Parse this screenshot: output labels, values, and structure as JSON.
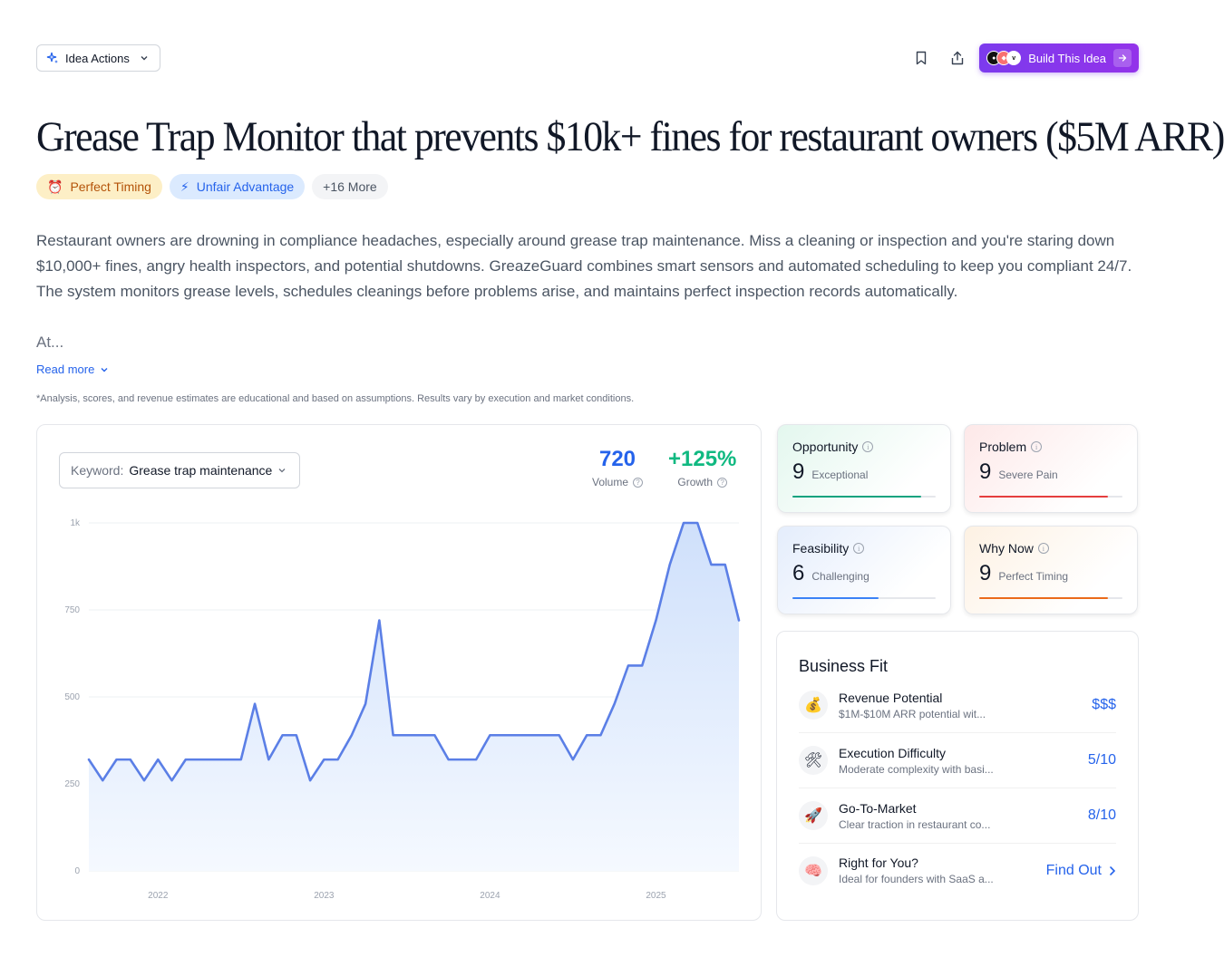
{
  "toolbar": {
    "idea_actions_label": "Idea Actions",
    "build_label": "Build This Idea"
  },
  "idea": {
    "title": "Grease Trap Monitor that prevents $10k+ fines for restaurant owners ($5M ARR)",
    "tags": [
      {
        "icon": "alarm-clock-icon",
        "label": "Perfect Timing"
      },
      {
        "icon": "lightning-icon",
        "label": "Unfair Advantage"
      },
      {
        "label": "+16 More"
      }
    ],
    "description": "Restaurant owners are drowning in compliance headaches, especially around grease trap maintenance. Miss a cleaning or inspection and you're staring down $10,000+ fines, angry health inspectors, and potential shutdowns. GreazeGuard combines smart sensors and automated scheduling to keep you compliant 24/7. The system monitors grease levels, schedules cleanings before problems arise, and maintains perfect inspection records automatically.",
    "description_more": "At...",
    "read_more_label": "Read more",
    "disclaimer": "*Analysis, scores, and revenue estimates are educational and based on assumptions. Results vary by execution and market conditions."
  },
  "trend": {
    "keyword_label": "Keyword:",
    "keyword_value": "Grease trap maintenance",
    "volume_value": "720",
    "volume_label": "Volume",
    "growth_value": "+125%",
    "growth_label": "Growth"
  },
  "chart_data": {
    "type": "area",
    "title": "",
    "xlabel": "",
    "ylabel": "",
    "ylim": [
      0,
      1000
    ],
    "y_ticks": [
      "0",
      "250",
      "500",
      "750",
      "1k"
    ],
    "y_tick_values": [
      0,
      250,
      500,
      750,
      1000
    ],
    "x_tick_labels": [
      "2022",
      "2023",
      "2024",
      "2025"
    ],
    "x_tick_positions": [
      5.0,
      17.0,
      29.0,
      41.0
    ],
    "x_range": [
      0,
      47
    ],
    "series": [
      {
        "name": "Search volume",
        "values": [
          320,
          260,
          320,
          320,
          260,
          320,
          260,
          320,
          320,
          320,
          320,
          320,
          480,
          320,
          390,
          390,
          260,
          320,
          320,
          390,
          480,
          720,
          390,
          390,
          390,
          390,
          320,
          320,
          320,
          390,
          390,
          390,
          390,
          390,
          390,
          320,
          390,
          390,
          480,
          590,
          590,
          720,
          880,
          1000,
          1000,
          880,
          880,
          720
        ]
      }
    ],
    "colors": {
      "line": "#5b7fe6",
      "fill_top": "#cfe0fb",
      "fill_bottom": "#f5f9ff",
      "grid": "#eef0f3"
    }
  },
  "scores": [
    {
      "title": "Opportunity",
      "value": "9",
      "label": "Exceptional",
      "fill": 0.9,
      "color": "#10a37f",
      "bg": "#e3f7ee"
    },
    {
      "title": "Problem",
      "value": "9",
      "label": "Severe Pain",
      "fill": 0.9,
      "color": "#e53e3e",
      "bg": "#fde8e8"
    },
    {
      "title": "Feasibility",
      "value": "6",
      "label": "Challenging",
      "fill": 0.6,
      "color": "#3b82f6",
      "bg": "#e4edfc"
    },
    {
      "title": "Why Now",
      "value": "9",
      "label": "Perfect Timing",
      "fill": 0.9,
      "color": "#ea6a1a",
      "bg": "#fdf1e3"
    }
  ],
  "business_fit": {
    "title": "Business Fit",
    "rows": [
      {
        "icon": "money-bag-icon",
        "name": "Revenue Potential",
        "desc": "$1M-$10M ARR potential wit...",
        "value": "$$$"
      },
      {
        "icon": "tools-icon",
        "name": "Execution Difficulty",
        "desc": "Moderate complexity with basi...",
        "value": "5/10"
      },
      {
        "icon": "rocket-icon",
        "name": "Go-To-Market",
        "desc": "Clear traction in restaurant co...",
        "value": "8/10"
      },
      {
        "icon": "brain-icon",
        "name": "Right for You?",
        "desc": "Ideal for founders with SaaS a...",
        "value": "Find Out"
      }
    ]
  }
}
